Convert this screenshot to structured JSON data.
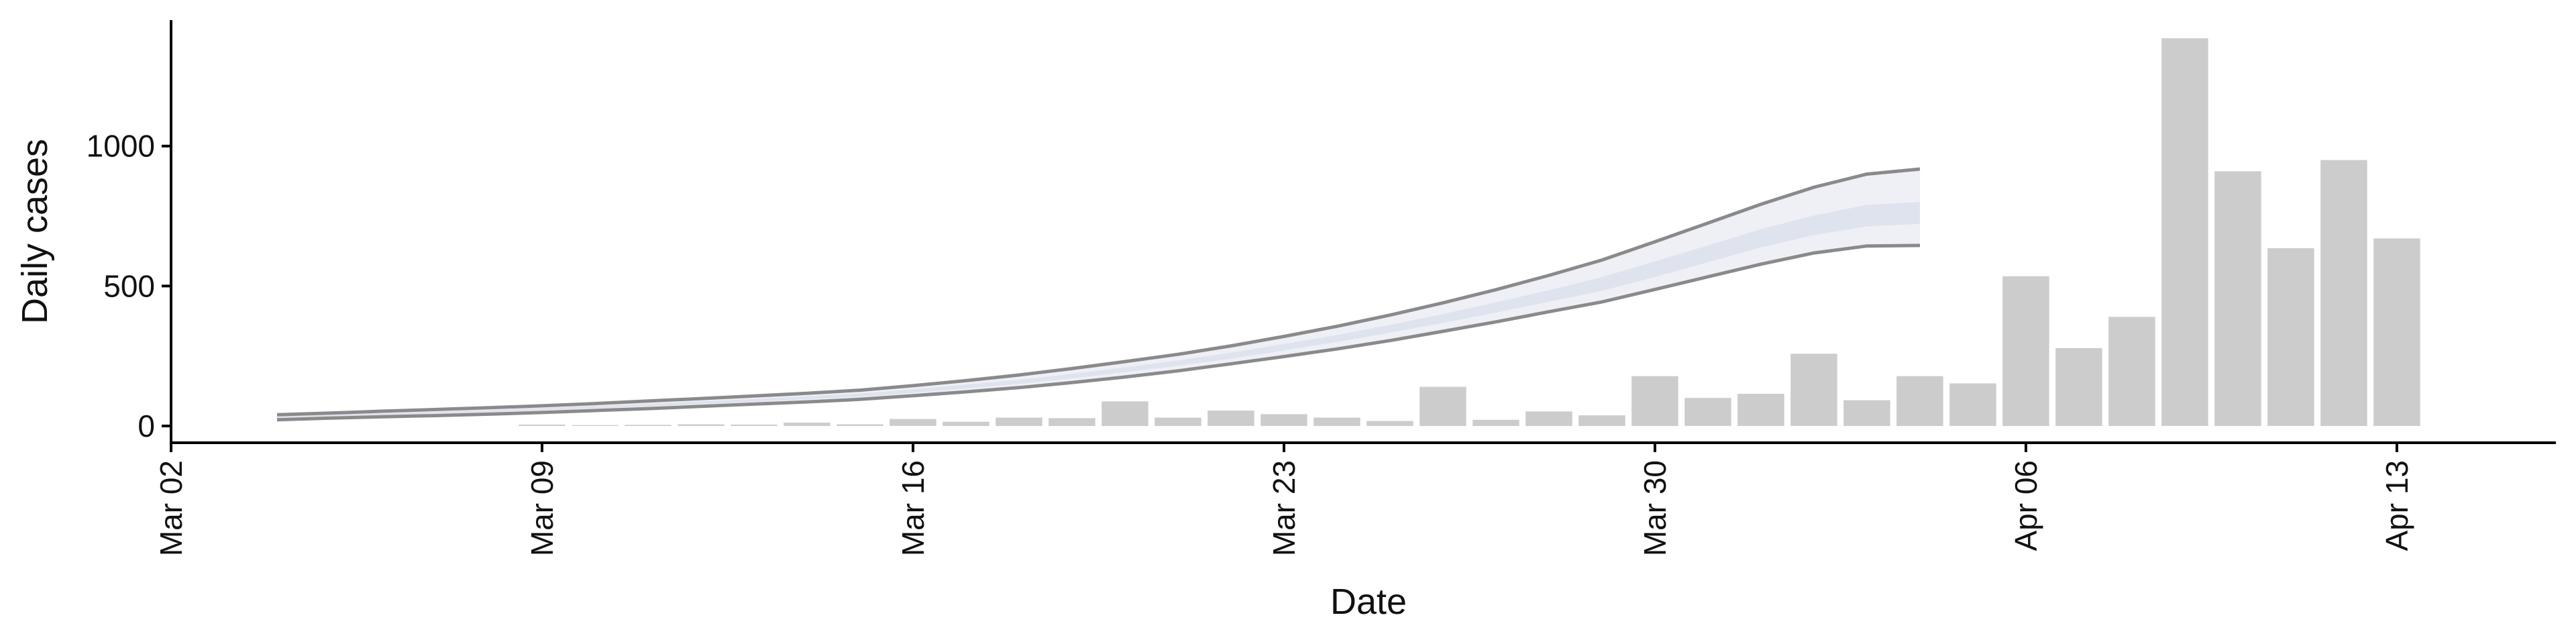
{
  "chart_data": {
    "type": "bar",
    "xlabel": "Date",
    "ylabel": "Daily cases",
    "x_range": [
      "2020-03-02",
      "2020-04-16"
    ],
    "ylim": [
      -60,
      1450
    ],
    "grid": false,
    "legend": "none",
    "x_ticks": [
      {
        "date": "2020-03-02",
        "label": "Mar 02"
      },
      {
        "date": "2020-03-09",
        "label": "Mar 09"
      },
      {
        "date": "2020-03-16",
        "label": "Mar 16"
      },
      {
        "date": "2020-03-23",
        "label": "Mar 23"
      },
      {
        "date": "2020-03-30",
        "label": "Mar 30"
      },
      {
        "date": "2020-04-06",
        "label": "Apr 06"
      },
      {
        "date": "2020-04-13",
        "label": "Apr 13"
      }
    ],
    "y_ticks": [
      {
        "value": 0,
        "label": "0"
      },
      {
        "value": 500,
        "label": "500"
      },
      {
        "value": 1000,
        "label": "1000"
      }
    ],
    "bars": {
      "color": "#cccccc",
      "x": [
        "2020-03-09",
        "2020-03-10",
        "2020-03-11",
        "2020-03-12",
        "2020-03-13",
        "2020-03-14",
        "2020-03-15",
        "2020-03-16",
        "2020-03-17",
        "2020-03-18",
        "2020-03-19",
        "2020-03-20",
        "2020-03-21",
        "2020-03-22",
        "2020-03-23",
        "2020-03-24",
        "2020-03-25",
        "2020-03-26",
        "2020-03-27",
        "2020-03-28",
        "2020-03-29",
        "2020-03-30",
        "2020-03-31",
        "2020-04-01",
        "2020-04-02",
        "2020-04-03",
        "2020-04-04",
        "2020-04-05",
        "2020-04-06",
        "2020-04-07",
        "2020-04-08",
        "2020-04-09",
        "2020-04-10",
        "2020-04-11",
        "2020-04-12",
        "2020-04-13"
      ],
      "values": [
        5,
        3,
        4,
        6,
        5,
        12,
        6,
        25,
        15,
        30,
        28,
        88,
        30,
        55,
        42,
        30,
        18,
        140,
        22,
        52,
        38,
        178,
        100,
        115,
        258,
        92,
        178,
        152,
        535,
        278,
        390,
        1385,
        910,
        635,
        950,
        670
      ]
    },
    "nowcast": {
      "x": [
        "2020-03-04",
        "2020-03-05",
        "2020-03-06",
        "2020-03-07",
        "2020-03-08",
        "2020-03-09",
        "2020-03-10",
        "2020-03-11",
        "2020-03-12",
        "2020-03-13",
        "2020-03-14",
        "2020-03-15",
        "2020-03-16",
        "2020-03-17",
        "2020-03-18",
        "2020-03-19",
        "2020-03-20",
        "2020-03-21",
        "2020-03-22",
        "2020-03-23",
        "2020-03-24",
        "2020-03-25",
        "2020-03-26",
        "2020-03-27",
        "2020-03-28",
        "2020-03-29",
        "2020-03-30",
        "2020-03-31",
        "2020-04-01",
        "2020-04-02",
        "2020-04-03",
        "2020-04-04"
      ],
      "outer_lower": [
        22,
        28,
        33,
        37,
        42,
        48,
        55,
        62,
        70,
        78,
        86,
        95,
        108,
        122,
        137,
        155,
        175,
        197,
        222,
        248,
        275,
        305,
        338,
        372,
        408,
        443,
        488,
        533,
        578,
        618,
        643,
        645
      ],
      "inner_lower": [
        28,
        34,
        39,
        44,
        49,
        56,
        63,
        70,
        78,
        86,
        95,
        104,
        118,
        134,
        150,
        170,
        192,
        215,
        240,
        270,
        300,
        333,
        368,
        405,
        444,
        483,
        532,
        585,
        638,
        682,
        713,
        722
      ],
      "inner_upper": [
        34,
        40,
        46,
        51,
        57,
        64,
        71,
        79,
        88,
        96,
        106,
        116,
        131,
        148,
        165,
        186,
        210,
        234,
        262,
        293,
        325,
        361,
        400,
        442,
        485,
        532,
        588,
        645,
        703,
        752,
        790,
        800
      ],
      "outer_upper": [
        40,
        46,
        53,
        59,
        65,
        72,
        80,
        89,
        98,
        107,
        117,
        128,
        144,
        162,
        182,
        205,
        230,
        256,
        286,
        320,
        356,
        396,
        440,
        487,
        538,
        593,
        658,
        725,
        792,
        853,
        900,
        918
      ],
      "band_outer_color": "#eef0f6",
      "band_inner_color": "#dfe3ee",
      "line_color": "#8a8a8a"
    }
  }
}
